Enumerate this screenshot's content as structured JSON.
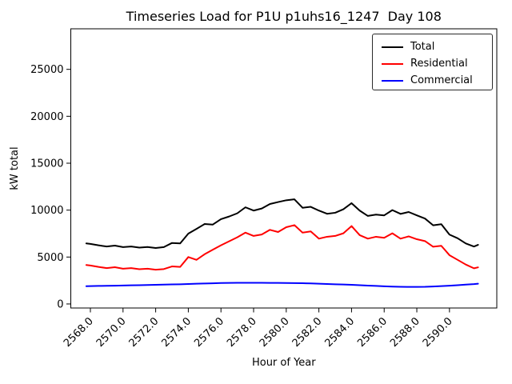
{
  "chart_data": {
    "type": "line",
    "title": "Timeseries Load for P1U p1uhs16_1247  Day 108",
    "xlabel": "Hour of Year",
    "ylabel": "kW total",
    "xlim": [
      2566.8,
      2592.9
    ],
    "ylim": [
      -430,
      29320
    ],
    "grid": false,
    "xticks": {
      "values": [
        2568,
        2570,
        2572,
        2574,
        2576,
        2578,
        2580,
        2582,
        2584,
        2586,
        2588,
        2590
      ],
      "labels": [
        "2568.0",
        "2570.0",
        "2572.0",
        "2574.0",
        "2576.0",
        "2578.0",
        "2580.0",
        "2582.0",
        "2584.0",
        "2586.0",
        "2588.0",
        "2590.0"
      ]
    },
    "yticks": {
      "values": [
        0,
        5000,
        10000,
        15000,
        20000,
        25000
      ],
      "labels": [
        "0",
        "5000",
        "10000",
        "15000",
        "20000",
        "25000"
      ]
    },
    "legend": {
      "position": "upper right",
      "entries": [
        {
          "label": "Total",
          "color": "#000000"
        },
        {
          "label": "Residential",
          "color": "#ff0000"
        },
        {
          "label": "Commercial",
          "color": "#0000ff"
        }
      ]
    },
    "x": [
      2567.75,
      2568.0,
      2568.5,
      2569.0,
      2569.5,
      2570.0,
      2570.5,
      2571.0,
      2571.5,
      2572.0,
      2572.5,
      2573.0,
      2573.5,
      2574.0,
      2574.5,
      2575.0,
      2575.5,
      2576.0,
      2576.5,
      2577.0,
      2577.5,
      2578.0,
      2578.5,
      2579.0,
      2579.5,
      2580.0,
      2580.5,
      2581.0,
      2581.5,
      2582.0,
      2582.5,
      2583.0,
      2583.5,
      2584.0,
      2584.5,
      2585.0,
      2585.5,
      2586.0,
      2586.5,
      2587.0,
      2587.5,
      2588.0,
      2588.5,
      2589.0,
      2589.5,
      2590.0,
      2590.5,
      2591.0,
      2591.5,
      2591.75
    ],
    "series": [
      {
        "name": "Total",
        "color": "#000000",
        "values": [
          6450,
          6400,
          6250,
          6120,
          6220,
          6060,
          6120,
          6010,
          6070,
          5960,
          6060,
          6500,
          6450,
          7500,
          8000,
          8520,
          8460,
          9040,
          9320,
          9660,
          10300,
          9950,
          10170,
          10650,
          10860,
          11050,
          11150,
          10250,
          10350,
          9950,
          9610,
          9720,
          10090,
          10740,
          9950,
          9380,
          9520,
          9440,
          10000,
          9600,
          9800,
          9440,
          9100,
          8380,
          8500,
          7390,
          7000,
          6450,
          6120,
          6300
        ]
      },
      {
        "name": "Residential",
        "color": "#ff0000",
        "values": [
          4150,
          4100,
          3950,
          3820,
          3920,
          3760,
          3820,
          3700,
          3760,
          3650,
          3720,
          4000,
          3950,
          5000,
          4700,
          5300,
          5780,
          6250,
          6680,
          7100,
          7600,
          7250,
          7400,
          7900,
          7670,
          8180,
          8400,
          7600,
          7730,
          6960,
          7160,
          7250,
          7530,
          8300,
          7330,
          6960,
          7160,
          7050,
          7530,
          6960,
          7200,
          6900,
          6700,
          6100,
          6200,
          5200,
          4700,
          4200,
          3800,
          3900
        ]
      },
      {
        "name": "Commercial",
        "color": "#0000ff",
        "values": [
          1890,
          1900,
          1920,
          1940,
          1950,
          1970,
          1990,
          2000,
          2020,
          2040,
          2060,
          2080,
          2100,
          2130,
          2160,
          2180,
          2200,
          2230,
          2240,
          2250,
          2250,
          2250,
          2250,
          2240,
          2240,
          2230,
          2220,
          2210,
          2190,
          2160,
          2130,
          2100,
          2070,
          2040,
          2000,
          1960,
          1920,
          1880,
          1850,
          1830,
          1820,
          1820,
          1830,
          1860,
          1900,
          1950,
          2000,
          2060,
          2120,
          2160
        ]
      }
    ]
  }
}
